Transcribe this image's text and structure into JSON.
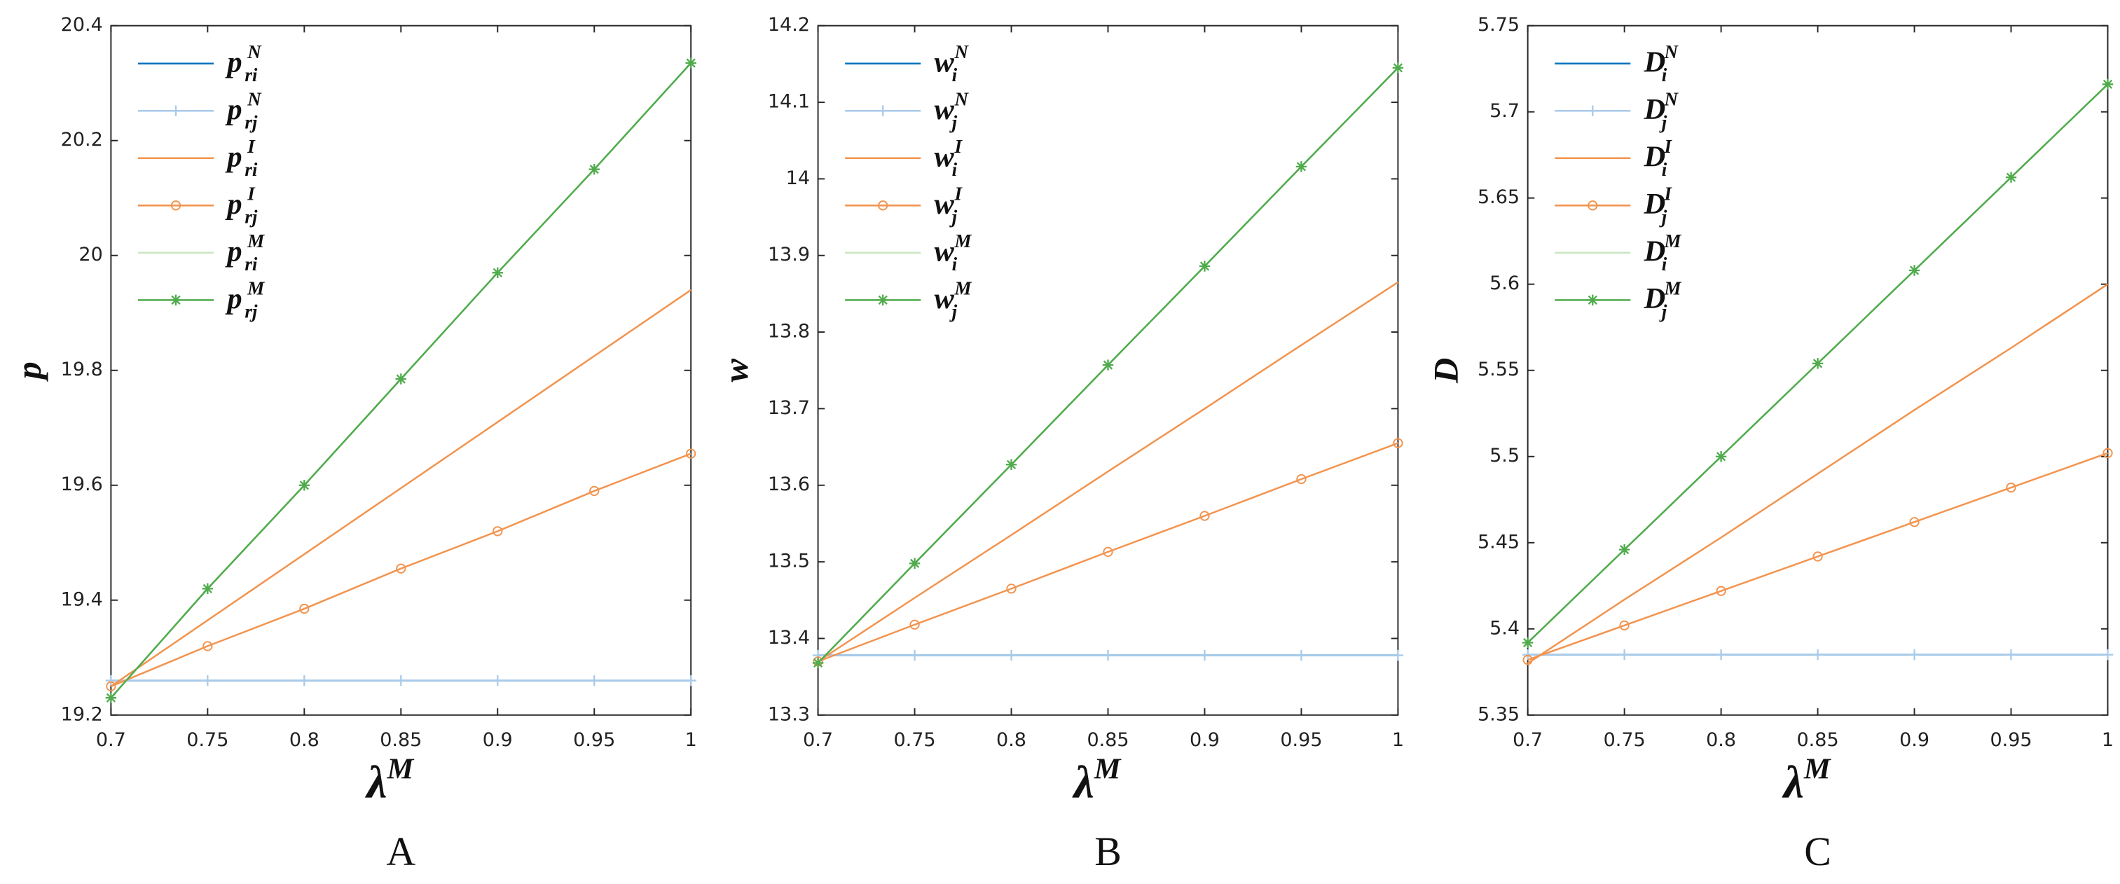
{
  "chart_data": [
    {
      "type": "line",
      "panel": "A",
      "ylabel": "p",
      "xlabel": "λ",
      "xlabel_sup": "M",
      "x": [
        0.7,
        0.75,
        0.8,
        0.85,
        0.9,
        0.95,
        1
      ],
      "xlim": [
        0.7,
        1
      ],
      "xticks": [
        0.7,
        0.75,
        0.8,
        0.85,
        0.9,
        0.95,
        1
      ],
      "ylim": [
        19.2,
        20.4
      ],
      "yticks": [
        19.2,
        19.4,
        19.6,
        19.8,
        20,
        20.2,
        20.4
      ],
      "series": [
        {
          "name": "p",
          "subscript": "ri",
          "superscript": "N",
          "color": "#0072bd",
          "marker": "none",
          "values": [
            19.26,
            19.26,
            19.26,
            19.26,
            19.26,
            19.26,
            19.26
          ]
        },
        {
          "name": "p",
          "subscript": "rj",
          "superscript": "N",
          "color": "#a9cbe9",
          "marker": "+",
          "values": [
            19.26,
            19.26,
            19.26,
            19.26,
            19.26,
            19.26,
            19.26
          ]
        },
        {
          "name": "p",
          "subscript": "ri",
          "superscript": "I",
          "color": "#f2944f",
          "marker": "none",
          "values": [
            19.25,
            19.365,
            19.48,
            19.595,
            19.71,
            19.825,
            19.94
          ]
        },
        {
          "name": "p",
          "subscript": "rj",
          "superscript": "I",
          "color": "#f2944f",
          "marker": "o",
          "values": [
            19.25,
            19.32,
            19.385,
            19.455,
            19.52,
            19.59,
            19.655
          ]
        },
        {
          "name": "p",
          "subscript": "ri",
          "superscript": "M",
          "color": "#c8e6c0",
          "marker": "none",
          "values": [
            19.23,
            19.42,
            19.6,
            19.785,
            19.97,
            20.15,
            20.335
          ]
        },
        {
          "name": "p",
          "subscript": "rj",
          "superscript": "M",
          "color": "#4fab4c",
          "marker": "*",
          "values": [
            19.23,
            19.42,
            19.6,
            19.785,
            19.97,
            20.15,
            20.335
          ]
        }
      ]
    },
    {
      "type": "line",
      "panel": "B",
      "ylabel": "w",
      "xlabel": "λ",
      "xlabel_sup": "M",
      "x": [
        0.7,
        0.75,
        0.8,
        0.85,
        0.9,
        0.95,
        1
      ],
      "xlim": [
        0.7,
        1
      ],
      "xticks": [
        0.7,
        0.75,
        0.8,
        0.85,
        0.9,
        0.95,
        1
      ],
      "ylim": [
        13.3,
        14.2
      ],
      "yticks": [
        13.3,
        13.4,
        13.5,
        13.6,
        13.7,
        13.8,
        13.9,
        14,
        14.1,
        14.2
      ],
      "series": [
        {
          "name": "w",
          "subscript": "i",
          "superscript": "N",
          "color": "#0072bd",
          "marker": "none",
          "values": [
            13.378,
            13.378,
            13.378,
            13.378,
            13.378,
            13.378,
            13.378
          ]
        },
        {
          "name": "w",
          "subscript": "j",
          "superscript": "N",
          "color": "#a9cbe9",
          "marker": "+",
          "values": [
            13.378,
            13.378,
            13.378,
            13.378,
            13.378,
            13.378,
            13.378
          ]
        },
        {
          "name": "w",
          "subscript": "i",
          "superscript": "I",
          "color": "#f2944f",
          "marker": "none",
          "values": [
            13.37,
            13.453,
            13.535,
            13.618,
            13.7,
            13.783,
            13.865
          ]
        },
        {
          "name": "w",
          "subscript": "j",
          "superscript": "I",
          "color": "#f2944f",
          "marker": "o",
          "values": [
            13.37,
            13.418,
            13.465,
            13.513,
            13.56,
            13.608,
            13.655
          ]
        },
        {
          "name": "w",
          "subscript": "i",
          "superscript": "M",
          "color": "#c8e6c0",
          "marker": "none",
          "values": [
            13.368,
            13.498,
            13.627,
            13.757,
            13.886,
            14.016,
            14.145
          ]
        },
        {
          "name": "w",
          "subscript": "j",
          "superscript": "M",
          "color": "#4fab4c",
          "marker": "*",
          "values": [
            13.368,
            13.498,
            13.627,
            13.757,
            13.886,
            14.016,
            14.145
          ]
        }
      ]
    },
    {
      "type": "line",
      "panel": "C",
      "ylabel": "D",
      "xlabel": "λ",
      "xlabel_sup": "M",
      "x": [
        0.7,
        0.75,
        0.8,
        0.85,
        0.9,
        0.95,
        1
      ],
      "xlim": [
        0.7,
        1
      ],
      "xticks": [
        0.7,
        0.75,
        0.8,
        0.85,
        0.9,
        0.95,
        1
      ],
      "ylim": [
        5.35,
        5.75
      ],
      "yticks": [
        5.35,
        5.4,
        5.45,
        5.5,
        5.55,
        5.6,
        5.65,
        5.7,
        5.75
      ],
      "series": [
        {
          "name": "D",
          "subscript": "i",
          "superscript": "N",
          "color": "#0072bd",
          "marker": "none",
          "values": [
            5.385,
            5.385,
            5.385,
            5.385,
            5.385,
            5.385,
            5.385
          ]
        },
        {
          "name": "D",
          "subscript": "j",
          "superscript": "N",
          "color": "#a9cbe9",
          "marker": "+",
          "values": [
            5.385,
            5.385,
            5.385,
            5.385,
            5.385,
            5.385,
            5.385
          ]
        },
        {
          "name": "D",
          "subscript": "i",
          "superscript": "I",
          "color": "#f2944f",
          "marker": "none",
          "values": [
            5.38,
            5.417,
            5.453,
            5.49,
            5.527,
            5.563,
            5.6
          ]
        },
        {
          "name": "D",
          "subscript": "j",
          "superscript": "I",
          "color": "#f2944f",
          "marker": "o",
          "values": [
            5.382,
            5.402,
            5.422,
            5.442,
            5.462,
            5.482,
            5.502
          ]
        },
        {
          "name": "D",
          "subscript": "i",
          "superscript": "M",
          "color": "#c8e6c0",
          "marker": "none",
          "values": [
            5.392,
            5.446,
            5.5,
            5.554,
            5.608,
            5.662,
            5.716
          ]
        },
        {
          "name": "D",
          "subscript": "j",
          "superscript": "M",
          "color": "#4fab4c",
          "marker": "*",
          "values": [
            5.392,
            5.446,
            5.5,
            5.554,
            5.608,
            5.662,
            5.716
          ]
        }
      ]
    }
  ]
}
